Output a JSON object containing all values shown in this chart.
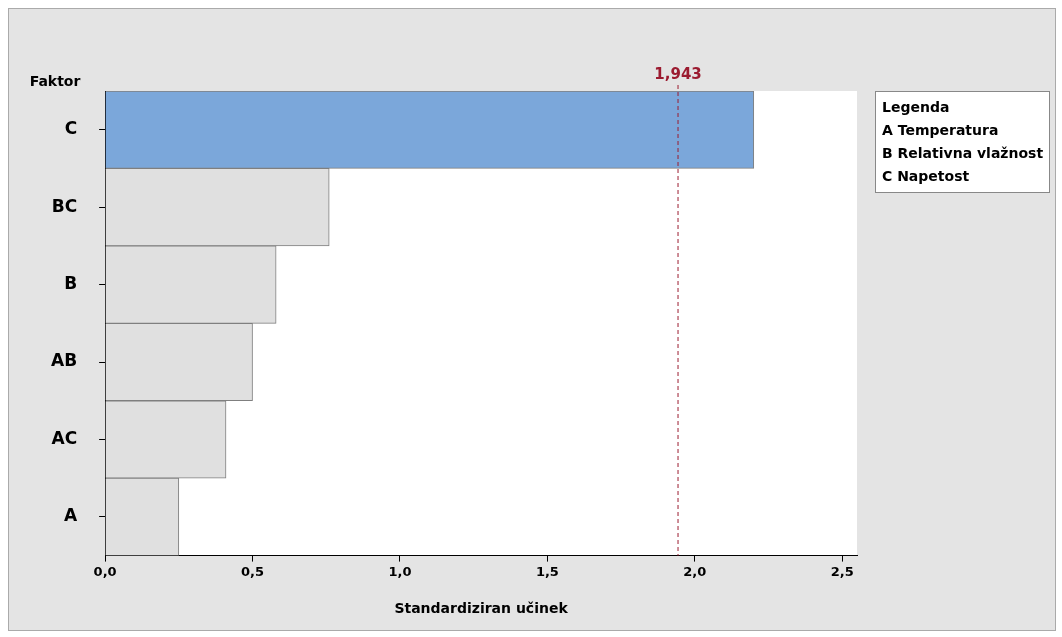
{
  "chart_data": {
    "type": "bar",
    "orientation": "horizontal",
    "ylabel": "Faktor",
    "xlabel": "Standardiziran učinek",
    "categories": [
      "C",
      "BC",
      "B",
      "AB",
      "AC",
      "A"
    ],
    "values": [
      2.2,
      0.76,
      0.58,
      0.5,
      0.41,
      0.25
    ],
    "colors": [
      "#7ba7da",
      "#e0e0e0",
      "#e0e0e0",
      "#e0e0e0",
      "#e0e0e0",
      "#e0e0e0"
    ],
    "xlim": [
      0,
      2.55
    ],
    "xticks": [
      {
        "value": 0,
        "label": "0,0"
      },
      {
        "value": 0.5,
        "label": "0,5"
      },
      {
        "value": 1,
        "label": "1,0"
      },
      {
        "value": 1.5,
        "label": "1,5"
      },
      {
        "value": 2,
        "label": "2,0"
      },
      {
        "value": 2.5,
        "label": "2,5"
      }
    ],
    "ref_lines": [
      {
        "axis": "x",
        "value": 1.943,
        "label": "1,943",
        "color": "#9b1b30",
        "line_style": "dashed"
      }
    ],
    "legend_title": "Legenda",
    "annotations": [
      "A Temperatura",
      "B Relativna vlažnost",
      "C Napetost"
    ],
    "grid": false
  }
}
